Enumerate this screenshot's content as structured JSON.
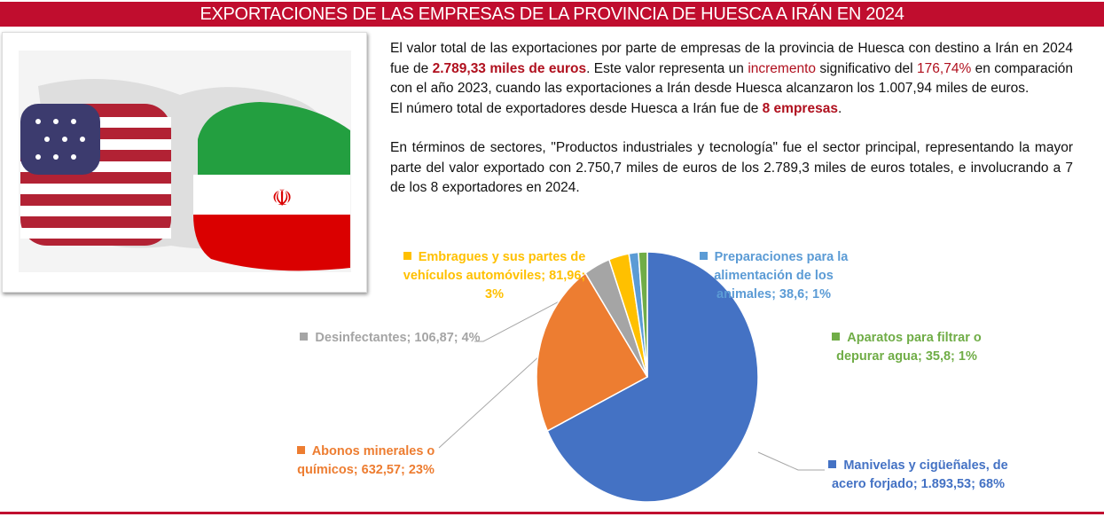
{
  "header": {
    "title": "EXPORTACIONES DE LAS EMPRESAS DE LA PROVINCIA DE HUESCA A IRÁN EN 2024"
  },
  "body_text": {
    "p1_a": "El valor total de las exportaciones por parte de empresas de la provincia de Huesca con destino a Irán en 2024 fue de ",
    "p1_value": "2.789,33 miles de euros",
    "p1_b": ". Este valor representa un ",
    "p1_incr": "incremento",
    "p1_c": " significativo del ",
    "p1_pct": "176,74%",
    "p1_d": " en comparación con el año 2023, cuando las exportaciones a Irán desde Huesca alcanzaron los 1.007,94 miles de euros.",
    "p2_a": "El número total de exportadores desde Huesca a Irán fue de ",
    "p2_count": "8 empresas",
    "p2_b": ".",
    "p3": "En términos de sectores, \"Productos industriales y tecnología\" fue el sector principal, representando la mayor parte del valor exportado con 2.750,7 miles de euros de los 2.789,3 miles de euros totales, e involucrando a 7 de los 8 exportadores en 2024."
  },
  "image": {
    "description_icon": "usa-vs-iran-fists-image"
  },
  "chart_data": {
    "type": "pie",
    "start": "top",
    "direction": "clockwise",
    "slices": [
      {
        "name": "Manivelas y cigüeñales, de acero forjado",
        "value": 1893.53,
        "label": "Manivelas y cigüeñales, de acero forjado; 1.893,53; 68%",
        "color": "#4472c4"
      },
      {
        "name": "Abonos minerales o químicos",
        "value": 632.57,
        "label": "Abonos minerales o químicos; 632,57; 23%",
        "color": "#ed7d31"
      },
      {
        "name": "Desinfectantes",
        "value": 106.87,
        "label": "Desinfectantes; 106,87; 4%",
        "color": "#a5a5a5"
      },
      {
        "name": "Embragues y sus partes de vehículos automóviles",
        "value": 81.96,
        "label": "Embragues y sus partes de vehículos automóviles; 81,96; 3%",
        "color": "#ffc000"
      },
      {
        "name": "Preparaciones para la alimentación de los animales",
        "value": 38.6,
        "label": "Preparaciones para la alimentación de los animales; 38,6; 1%",
        "color": "#5b9bd5"
      },
      {
        "name": "Aparatos para filtrar o depurar agua",
        "value": 35.8,
        "label": "Aparatos para filtrar o depurar agua; 35,8; 1%",
        "color": "#70ad47"
      }
    ]
  }
}
